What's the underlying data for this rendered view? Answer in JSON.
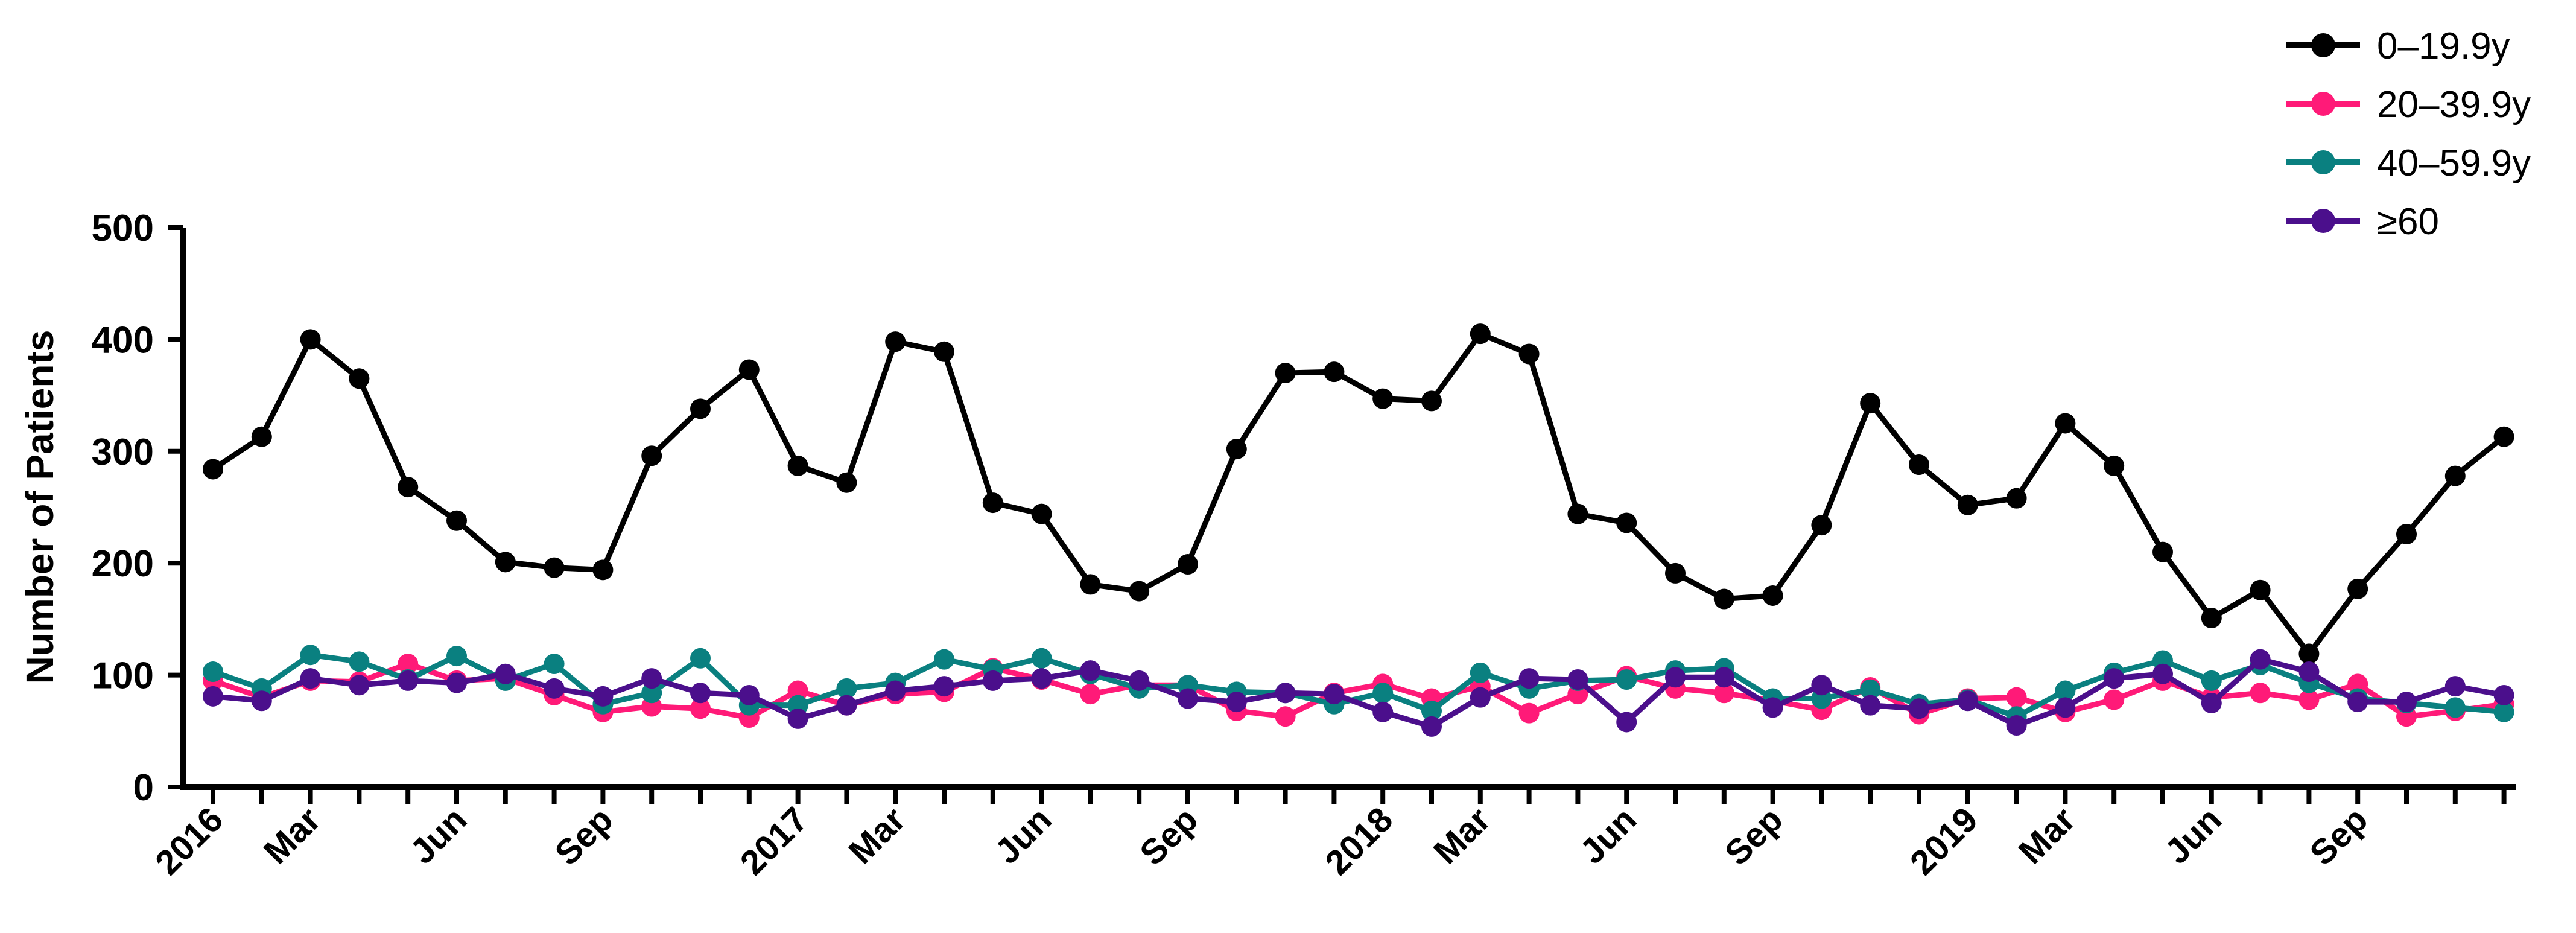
{
  "chart_data": {
    "type": "line",
    "title": "",
    "xlabel": "",
    "ylabel": "Number of Patients",
    "ylim": [
      0,
      500
    ],
    "yticks": [
      0,
      100,
      200,
      300,
      400,
      500
    ],
    "ytick_labels": [
      "0",
      "100",
      "200",
      "300",
      "400",
      "500"
    ],
    "x": [
      "2016-01",
      "2016-02",
      "2016-03",
      "2016-04",
      "2016-05",
      "2016-06",
      "2016-07",
      "2016-08",
      "2016-09",
      "2016-10",
      "2016-11",
      "2016-12",
      "2017-01",
      "2017-02",
      "2017-03",
      "2017-04",
      "2017-05",
      "2017-06",
      "2017-07",
      "2017-08",
      "2017-09",
      "2017-10",
      "2017-11",
      "2017-12",
      "2018-01",
      "2018-02",
      "2018-03",
      "2018-04",
      "2018-05",
      "2018-06",
      "2018-07",
      "2018-08",
      "2018-09",
      "2018-10",
      "2018-11",
      "2018-12",
      "2019-01",
      "2019-02",
      "2019-03",
      "2019-04",
      "2019-05",
      "2019-06",
      "2019-07",
      "2019-08",
      "2019-09",
      "2019-10",
      "2019-11",
      "2019-12"
    ],
    "xtick_labels": [
      {
        "index": 0,
        "label": "2016"
      },
      {
        "index": 2,
        "label": "Mar"
      },
      {
        "index": 5,
        "label": "Jun"
      },
      {
        "index": 8,
        "label": "Sep"
      },
      {
        "index": 12,
        "label": "2017"
      },
      {
        "index": 14,
        "label": "Mar"
      },
      {
        "index": 17,
        "label": "Jun"
      },
      {
        "index": 20,
        "label": "Sep"
      },
      {
        "index": 24,
        "label": "2018"
      },
      {
        "index": 26,
        "label": "Mar"
      },
      {
        "index": 29,
        "label": "Jun"
      },
      {
        "index": 32,
        "label": "Sep"
      },
      {
        "index": 36,
        "label": "2019"
      },
      {
        "index": 38,
        "label": "Mar"
      },
      {
        "index": 41,
        "label": "Jun"
      },
      {
        "index": 44,
        "label": "Sep"
      }
    ],
    "legend_position": "top-right",
    "grid": false,
    "series": [
      {
        "name": "0–19.9y",
        "color": "#000000",
        "values": [
          284,
          313,
          400,
          365,
          268,
          238,
          201,
          196,
          194,
          296,
          338,
          373,
          287,
          272,
          398,
          389,
          254,
          244,
          181,
          175,
          199,
          302,
          370,
          371,
          347,
          345,
          405,
          387,
          244,
          236,
          191,
          168,
          171,
          234,
          343,
          288,
          252,
          258,
          325,
          287,
          210,
          151,
          176,
          119,
          177,
          226,
          278,
          313
        ]
      },
      {
        "name": "20–39.9y",
        "color": "#ff1a78",
        "values": [
          95,
          80,
          95,
          94,
          110,
          95,
          97,
          82,
          67,
          72,
          70,
          62,
          86,
          73,
          83,
          85,
          106,
          96,
          83,
          91,
          91,
          68,
          63,
          84,
          92,
          79,
          90,
          66,
          83,
          99,
          88,
          84,
          77,
          69,
          89,
          65,
          79,
          80,
          67,
          78,
          95,
          80,
          84,
          78,
          92,
          63,
          68,
          74
        ]
      },
      {
        "name": "40–59.9y",
        "color": "#0a8080",
        "values": [
          103,
          88,
          118,
          112,
          96,
          117,
          95,
          110,
          74,
          84,
          115,
          73,
          73,
          88,
          93,
          114,
          105,
          115,
          101,
          88,
          91,
          85,
          84,
          74,
          84,
          68,
          102,
          88,
          95,
          96,
          104,
          106,
          79,
          79,
          87,
          74,
          78,
          63,
          86,
          102,
          113,
          95,
          109,
          93,
          79,
          75,
          71,
          67
        ]
      },
      {
        "name": "≥60",
        "color": "#4b0f8c",
        "values": [
          81,
          77,
          97,
          91,
          95,
          93,
          101,
          88,
          81,
          97,
          84,
          82,
          61,
          73,
          86,
          90,
          95,
          97,
          104,
          95,
          79,
          76,
          84,
          83,
          67,
          54,
          80,
          97,
          96,
          58,
          98,
          98,
          71,
          91,
          73,
          70,
          77,
          55,
          71,
          97,
          101,
          75,
          114,
          103,
          76,
          76,
          90,
          82
        ]
      }
    ]
  }
}
